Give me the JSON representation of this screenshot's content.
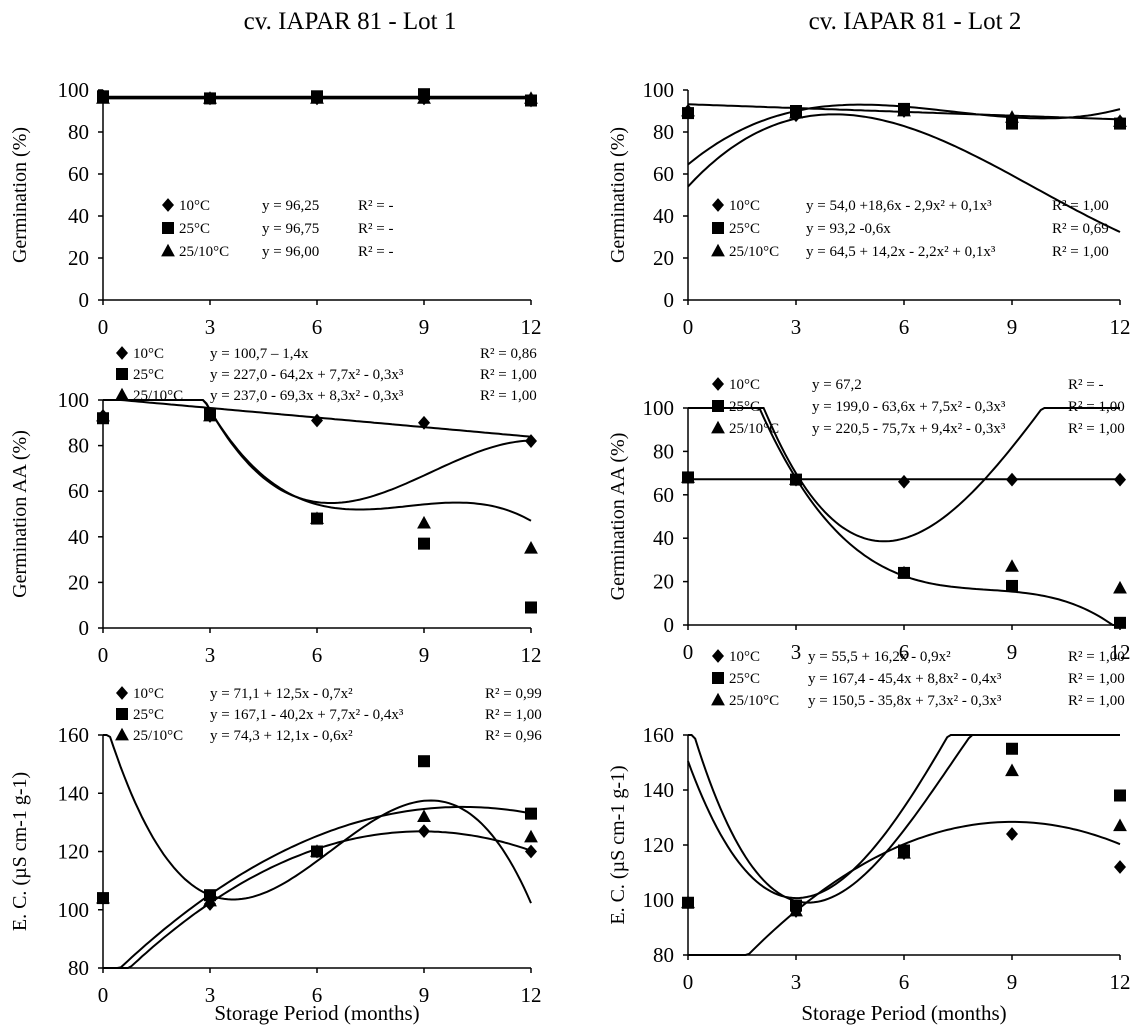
{
  "column_titles": [
    "cv. IAPAR 81 - Lot 1",
    "cv. IAPAR 81 - Lot 2"
  ],
  "chart_data": [
    {
      "type": "scatter",
      "title": "",
      "xlabel": "",
      "ylabel": "Germination (%)",
      "x_ticks": [
        0,
        3,
        6,
        9,
        12
      ],
      "y_ticks": [
        0,
        20,
        40,
        60,
        80,
        100
      ],
      "xlim": [
        0,
        12
      ],
      "ylim": [
        0,
        100
      ],
      "series": [
        {
          "name": "10°C",
          "marker": "diamond",
          "x": [
            0,
            3,
            6,
            9,
            12
          ],
          "y": [
            97,
            96,
            96,
            96,
            95
          ],
          "fit": [
            96.25,
            0,
            0,
            0
          ],
          "equation": "y = 96,25",
          "r2": "R² = -"
        },
        {
          "name": "25°C",
          "marker": "square",
          "x": [
            0,
            3,
            6,
            9,
            12
          ],
          "y": [
            97,
            96,
            97,
            98,
            95
          ],
          "fit": [
            96.75,
            0,
            0,
            0
          ],
          "equation": "y = 96,75",
          "r2": "R² = -"
        },
        {
          "name": "25/10°C",
          "marker": "triangle",
          "x": [
            0,
            3,
            6,
            9,
            12
          ],
          "y": [
            96,
            96,
            96,
            96,
            96
          ],
          "fit": [
            96.0,
            0,
            0,
            0
          ],
          "equation": "y = 96,00",
          "r2": "R² = -"
        }
      ]
    },
    {
      "type": "scatter",
      "title": "",
      "xlabel": "",
      "ylabel": "Germination (%)",
      "x_ticks": [
        0,
        3,
        6,
        9,
        12
      ],
      "y_ticks": [
        0,
        20,
        40,
        60,
        80,
        100
      ],
      "xlim": [
        0,
        12
      ],
      "ylim": [
        0,
        100
      ],
      "series": [
        {
          "name": "10°C",
          "marker": "diamond",
          "x": [
            0,
            3,
            6,
            9,
            12
          ],
          "y": [
            90,
            88,
            90,
            86,
            85
          ],
          "fit": [
            54.0,
            18.6,
            -2.9,
            0.1
          ],
          "equation": "y = 54,0 +18,6x - 2,9x² + 0,1x³",
          "r2": "R² = 1,00"
        },
        {
          "name": "25°C",
          "marker": "square",
          "x": [
            0,
            3,
            6,
            9,
            12
          ],
          "y": [
            89,
            90,
            91,
            84,
            84
          ],
          "fit": [
            93.2,
            -0.6,
            0,
            0
          ],
          "equation": "y = 93,2 -0,6x",
          "r2": "R² = 0,69"
        },
        {
          "name": "25/10°C",
          "marker": "triangle",
          "x": [
            0,
            3,
            6,
            9,
            12
          ],
          "y": [
            90,
            89,
            90,
            87,
            85
          ],
          "fit": [
            64.5,
            14.2,
            -2.2,
            0.1
          ],
          "equation": "y = 64,5 + 14,2x - 2,2x² + 0,1x³",
          "r2": "R² = 1,00"
        }
      ]
    },
    {
      "type": "scatter",
      "title": "",
      "xlabel": "",
      "ylabel": "Germination AA (%)",
      "x_ticks": [
        0,
        3,
        6,
        9,
        12
      ],
      "y_ticks": [
        0,
        20,
        40,
        60,
        80,
        100
      ],
      "xlim": [
        0,
        12
      ],
      "ylim": [
        0,
        100
      ],
      "series": [
        {
          "name": "10°C",
          "marker": "diamond",
          "x": [
            0,
            3,
            6,
            9,
            12
          ],
          "y": [
            93,
            93,
            91,
            90,
            82
          ],
          "fit": [
            100.7,
            -1.4,
            0,
            0
          ],
          "equation": "y = 100,7 – 1,4x",
          "r2": "R² = 0,86"
        },
        {
          "name": "25°C",
          "marker": "square",
          "x": [
            0,
            3,
            6,
            9,
            12
          ],
          "y": [
            92,
            94,
            48,
            37,
            9
          ],
          "fit": [
            227.0,
            -64.2,
            7.7,
            -0.3
          ],
          "equation": "y = 227,0 - 64,2x + 7,7x² - 0,3x³",
          "r2": "R² = 1,00"
        },
        {
          "name": "25/10°C",
          "marker": "triangle",
          "x": [
            0,
            3,
            6,
            9,
            12
          ],
          "y": [
            93,
            93,
            48,
            46,
            35
          ],
          "fit": [
            237.0,
            -69.3,
            8.3,
            -0.3
          ],
          "equation": "y = 237,0 - 69,3x + 8,3x² - 0,3x³",
          "r2": "R² = 1,00"
        }
      ]
    },
    {
      "type": "scatter",
      "title": "",
      "xlabel": "",
      "ylabel": "Germination AA (%)",
      "x_ticks": [
        0,
        3,
        6,
        9,
        12
      ],
      "y_ticks": [
        0,
        20,
        40,
        60,
        80,
        100
      ],
      "xlim": [
        0,
        12
      ],
      "ylim": [
        0,
        100
      ],
      "series": [
        {
          "name": "10°C",
          "marker": "diamond",
          "x": [
            0,
            3,
            6,
            9,
            12
          ],
          "y": [
            68,
            67,
            66,
            67,
            67
          ],
          "fit": [
            67.2,
            0,
            0,
            0
          ],
          "equation": "y = 67,2",
          "r2": "R² = -"
        },
        {
          "name": "25°C",
          "marker": "square",
          "x": [
            0,
            3,
            6,
            9,
            12
          ],
          "y": [
            68,
            67,
            24,
            18,
            1
          ],
          "fit": [
            199.0,
            -63.6,
            7.5,
            -0.3
          ],
          "equation": "y = 199,0 - 63,6x + 7,5x² - 0,3x³",
          "r2": "R² = 1,00"
        },
        {
          "name": "25/10°C",
          "marker": "triangle",
          "x": [
            0,
            3,
            6,
            9,
            12
          ],
          "y": [
            68,
            67,
            24,
            27,
            17
          ],
          "fit": [
            220.5,
            -75.7,
            9.4,
            -0.3
          ],
          "equation": "y = 220,5 - 75,7x + 9,4x² - 0,3x³",
          "r2": "R² = 1,00"
        }
      ]
    },
    {
      "type": "scatter",
      "title": "",
      "xlabel": "Storage Period (months)",
      "ylabel": "E. C. (µS cm-1 g-1)",
      "x_ticks": [
        0,
        3,
        6,
        9,
        12
      ],
      "y_ticks": [
        80,
        100,
        120,
        140,
        160
      ],
      "xlim": [
        0,
        12
      ],
      "ylim": [
        80,
        160
      ],
      "series": [
        {
          "name": "10°C",
          "marker": "diamond",
          "x": [
            0,
            3,
            6,
            9,
            12
          ],
          "y": [
            104,
            102,
            120,
            127,
            120
          ],
          "fit": [
            71.1,
            12.5,
            -0.7,
            0
          ],
          "equation": "y = 71,1 + 12,5x - 0,7x²",
          "r2": "R² = 0,99"
        },
        {
          "name": "25°C",
          "marker": "square",
          "x": [
            0,
            3,
            6,
            9,
            12
          ],
          "y": [
            104,
            105,
            120,
            151,
            133
          ],
          "fit": [
            167.1,
            -40.2,
            7.7,
            -0.4
          ],
          "equation": "y = 167,1 - 40,2x + 7,7x² - 0,4x³",
          "r2": "R² = 1,00"
        },
        {
          "name": "25/10°C",
          "marker": "triangle",
          "x": [
            0,
            3,
            6,
            9,
            12
          ],
          "y": [
            104,
            103,
            120,
            132,
            125
          ],
          "fit": [
            74.3,
            12.1,
            -0.6,
            0
          ],
          "equation": "y = 74,3 + 12,1x - 0,6x²",
          "r2": "R² = 0,96"
        }
      ]
    },
    {
      "type": "scatter",
      "title": "",
      "xlabel": "Storage Period (months)",
      "ylabel": "E. C. (µS cm-1 g-1)",
      "x_ticks": [
        0,
        3,
        6,
        9,
        12
      ],
      "y_ticks": [
        80,
        100,
        120,
        140,
        160
      ],
      "xlim": [
        0,
        12
      ],
      "ylim": [
        80,
        160
      ],
      "series": [
        {
          "name": "10°C",
          "marker": "diamond",
          "x": [
            0,
            3,
            6,
            9,
            12
          ],
          "y": [
            99,
            96,
            117,
            124,
            112
          ],
          "fit": [
            55.5,
            16.2,
            -0.9,
            0
          ],
          "equation": "y = 55,5 + 16,2x - 0,9x²",
          "r2": "R² = 1,00"
        },
        {
          "name": "25°C",
          "marker": "square",
          "x": [
            0,
            3,
            6,
            9,
            12
          ],
          "y": [
            99,
            98,
            118,
            155,
            138
          ],
          "fit": [
            167.4,
            -45.4,
            8.8,
            -0.4
          ],
          "equation": "y = 167,4 - 45,4x + 8,8x² - 0,4x³",
          "r2": "R² = 1,00"
        },
        {
          "name": "25/10°C",
          "marker": "triangle",
          "x": [
            0,
            3,
            6,
            9,
            12
          ],
          "y": [
            99,
            96,
            117,
            147,
            127
          ],
          "fit": [
            150.5,
            -35.8,
            7.3,
            -0.3
          ],
          "equation": "y = 150,5 - 35,8x + 7,3x² - 0,3x³",
          "r2": "R² = 1,00"
        }
      ]
    }
  ]
}
